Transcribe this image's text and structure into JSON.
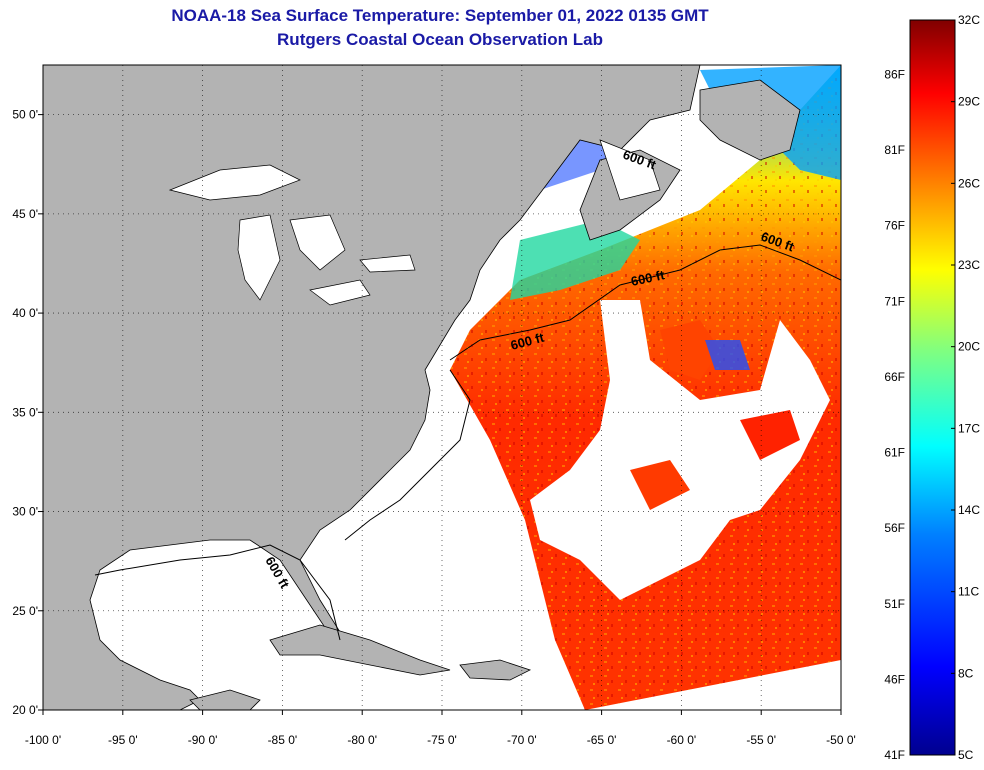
{
  "title": "NOAA-18 Sea Surface Temperature:  September 01, 2022 0135 GMT",
  "subtitle": "Rutgers Coastal Ocean Observation Lab",
  "colors": {
    "land": "#b3b3b3",
    "no_data": "#ffffff",
    "title_color": "#1a1aa6"
  },
  "map": {
    "lon_range": [
      -100,
      -50
    ],
    "lat_range": [
      20,
      52.5
    ],
    "lon_ticks": [
      "-100 0'",
      "-95 0'",
      "-90 0'",
      "-85 0'",
      "-80 0'",
      "-75 0'",
      "-70 0'",
      "-65 0'",
      "-60 0'",
      "-55 0'",
      "-50 0'"
    ],
    "lat_ticks": [
      "20 0'",
      "25 0'",
      "30 0'",
      "35 0'",
      "40 0'",
      "45 0'",
      "50 0'"
    ],
    "contour_labels": [
      "600 ft",
      "600 ft",
      "600 ft",
      "600 ft",
      "600 ft"
    ]
  },
  "colorbar": {
    "fahrenheit_labels": [
      "86F",
      "81F",
      "76F",
      "71F",
      "66F",
      "61F",
      "56F",
      "51F",
      "46F",
      "41F"
    ],
    "celsius_labels": [
      "32C",
      "29C",
      "26C",
      "23C",
      "20C",
      "17C",
      "14C",
      "11C",
      "8C",
      "5C"
    ],
    "gradient": [
      "#00008f",
      "#0000ff",
      "#0080ff",
      "#00ffff",
      "#80ff80",
      "#ffff00",
      "#ff8000",
      "#ff0000",
      "#800000"
    ]
  }
}
